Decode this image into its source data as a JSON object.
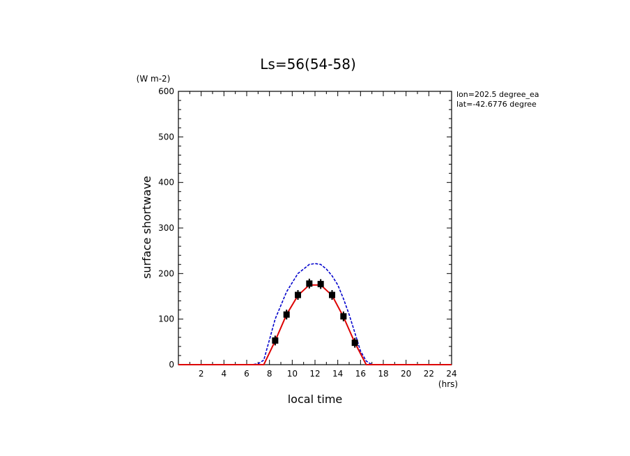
{
  "chart_data": {
    "type": "line",
    "title": "Ls=56(54-58)",
    "xlabel": "local time",
    "ylabel": "surface shortwave",
    "x_unit": "(hrs)",
    "y_unit": "(W m-2)",
    "xlim": [
      0,
      24
    ],
    "ylim": [
      0,
      600
    ],
    "x_ticks": [
      2,
      4,
      6,
      8,
      10,
      12,
      14,
      16,
      18,
      20,
      22,
      24
    ],
    "y_ticks": [
      0,
      100,
      200,
      300,
      400,
      500,
      600
    ],
    "annotations": [
      "lon=202.5 degree_ea",
      "lat=-42.6776 degree"
    ],
    "grid": false,
    "series": [
      {
        "style": "dashed",
        "color": "#0000cc",
        "x": [
          0,
          1,
          2,
          3,
          4,
          5,
          6,
          6.5,
          7,
          7.5,
          8,
          8.5,
          9,
          9.5,
          10,
          10.5,
          11,
          11.5,
          12,
          12.5,
          13,
          13.5,
          14,
          14.5,
          15,
          15.5,
          16,
          16.5,
          17,
          17.5,
          18,
          19,
          20,
          21,
          22,
          23,
          24
        ],
        "y": [
          0,
          0,
          0,
          0,
          0,
          0,
          0,
          0,
          2,
          10,
          55,
          100,
          130,
          160,
          180,
          200,
          210,
          220,
          222,
          220,
          210,
          195,
          175,
          145,
          110,
          70,
          30,
          8,
          0,
          0,
          0,
          0,
          0,
          0,
          0,
          0,
          0
        ]
      },
      {
        "style": "solid",
        "color": "#dd0000",
        "x": [
          0,
          1,
          2,
          3,
          4,
          5,
          6,
          7,
          7.5,
          8.5,
          9.5,
          10.5,
          11.5,
          12.5,
          13.5,
          14.5,
          15.5,
          16.5,
          17,
          18,
          19,
          20,
          21,
          22,
          23,
          24
        ],
        "y": [
          0,
          0,
          0,
          0,
          0,
          0,
          0,
          0,
          0,
          52,
          110,
          152,
          175,
          175,
          152,
          105,
          48,
          0,
          0,
          0,
          0,
          0,
          0,
          0,
          0,
          0
        ]
      },
      {
        "style": "markers",
        "color": "#000000",
        "x": [
          8.5,
          9.5,
          10.5,
          11.5,
          12.5,
          13.5,
          14.5,
          15.5
        ],
        "y": [
          53,
          110,
          153,
          178,
          177,
          153,
          106,
          48
        ]
      }
    ]
  }
}
